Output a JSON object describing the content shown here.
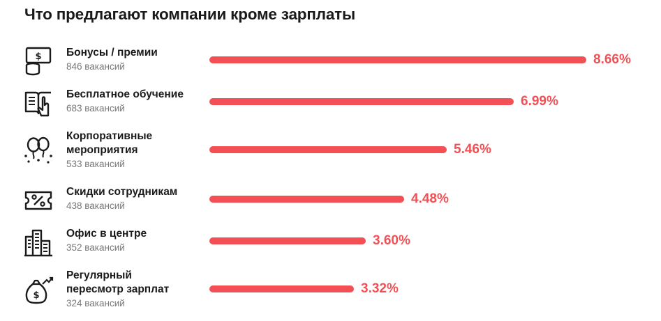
{
  "title": "Что предлагают компании кроме зарплаты",
  "colors": {
    "bar": "#f25055",
    "text": "#1a1a1a",
    "muted": "#777777"
  },
  "chart_data": {
    "type": "bar",
    "orientation": "horizontal",
    "title": "Что предлагают компании кроме зарплаты",
    "categories": [
      "Бонусы / премии",
      "Бесплатное обучение",
      "Корпоративные мероприятия",
      "Скидки сотрудникам",
      "Офис в центре",
      "Регулярный пересмотр зарплат"
    ],
    "values": [
      8.66,
      6.99,
      5.46,
      4.48,
      3.6,
      3.32
    ],
    "unit": "%",
    "xlim": [
      0,
      8.66
    ],
    "grid": false,
    "legend": "none"
  },
  "rows": [
    {
      "label_lines": [
        "Бонусы / премии"
      ],
      "count": "846 вакансий",
      "value": 8.66,
      "value_label": "8.66%",
      "icon": "money-bill-coins-icon"
    },
    {
      "label_lines": [
        "Бесплатное обучение"
      ],
      "count": "683 вакансий",
      "value": 6.99,
      "value_label": "6.99%",
      "icon": "book-hand-icon"
    },
    {
      "label_lines": [
        "Корпоративные",
        "мероприятия"
      ],
      "count": "533 вакансий",
      "value": 5.46,
      "value_label": "5.46%",
      "icon": "balloons-icon"
    },
    {
      "label_lines": [
        "Скидки сотрудникам"
      ],
      "count": "438 вакансий",
      "value": 4.48,
      "value_label": "4.48%",
      "icon": "discount-ticket-icon"
    },
    {
      "label_lines": [
        "Офис в центре"
      ],
      "count": "352 вакансий",
      "value": 3.6,
      "value_label": "3.60%",
      "icon": "city-buildings-icon"
    },
    {
      "label_lines": [
        "Регулярный",
        "пересмотр зарплат"
      ],
      "count": "324 вакансий",
      "value": 3.32,
      "value_label": "3.32%",
      "icon": "money-bag-growth-icon"
    }
  ]
}
